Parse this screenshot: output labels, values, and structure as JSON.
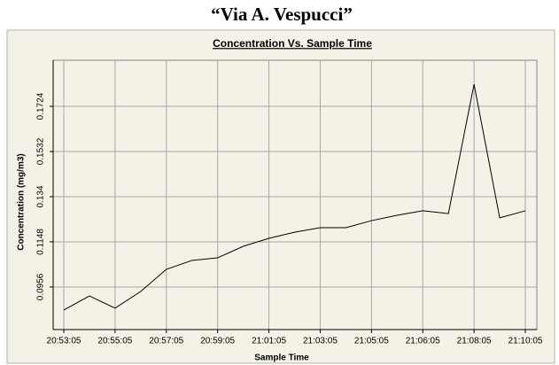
{
  "heading": "“Via A. Vespucci”",
  "chart_data": {
    "type": "line",
    "title": "Concentration Vs. Sample Time",
    "x_label": "Sample Time",
    "y_label": "Concentration (mg/m3)",
    "categories": [
      "20:53:05",
      null,
      "20:55:05",
      null,
      "20:57:05",
      null,
      "20:59:05",
      null,
      "21:01:05",
      null,
      "21:03:05",
      null,
      "21:05:05",
      null,
      "21:06:05",
      null,
      "21:08:05",
      null,
      "21:10:05"
    ],
    "series": [
      {
        "name": "Concentration",
        "color": "#000000",
        "values": [
          0.0858,
          0.0918,
          0.0866,
          0.0937,
          0.1031,
          0.1069,
          0.108,
          0.1129,
          0.1163,
          0.1189,
          0.1208,
          0.1208,
          0.1238,
          0.1261,
          0.128,
          0.1268,
          0.1818,
          0.125,
          0.128
        ]
      }
    ],
    "ylim": [
      0.0775,
      0.192
    ],
    "yticks": [
      0.0956,
      0.1148,
      0.134,
      0.1532,
      0.1724
    ],
    "grid": true
  }
}
